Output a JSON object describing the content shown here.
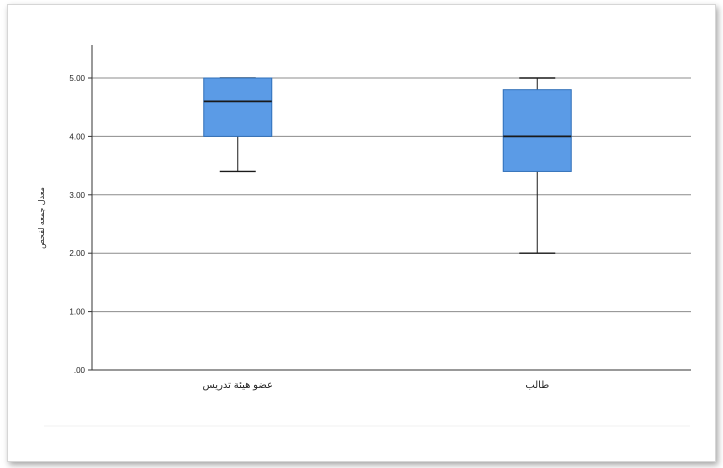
{
  "chart_data": {
    "type": "boxplot",
    "ylabel": "معدل جمعه لفحص",
    "ylim": [
      0,
      5.5
    ],
    "yticks": [
      0,
      1,
      2,
      3,
      4,
      5
    ],
    "ytick_labels": [
      ".00",
      "1.00",
      "2.00",
      "3.00",
      "4.00",
      "5.00"
    ],
    "grid": true,
    "categories": [
      "عضو هيئة تدريس",
      "طالب"
    ],
    "boxes": [
      {
        "category": "عضو هيئة تدريس",
        "min": 3.4,
        "q1": 4.0,
        "median": 4.6,
        "q3": 5.0,
        "max": 5.0
      },
      {
        "category": "طالب",
        "min": 2.0,
        "q1": 3.4,
        "median": 4.0,
        "q3": 4.8,
        "max": 5.0
      }
    ],
    "colors": {
      "box_fill": "#5b9be6",
      "box_stroke": "#2f6fb8",
      "median": "#1a1a1a",
      "whisker": "#1a1a1a",
      "grid": "#8c8c8c",
      "axis": "#333333"
    }
  }
}
